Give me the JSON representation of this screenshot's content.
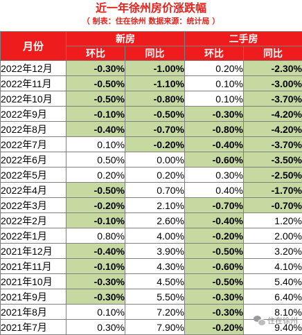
{
  "header": {
    "title": "近一年徐州房价涨跌幅",
    "subtitle": "（ 制表：住在徐州   数据来源：统计局 ）"
  },
  "table": {
    "col_month": "月份",
    "group_new": "新房",
    "group_second": "二手房",
    "sub_mom": "环比",
    "sub_yoy": "同比",
    "rows": [
      {
        "month": "2022年12月",
        "new_mom": "-0.30%",
        "new_yoy": "-1.00%",
        "sec_mom": "0.20%",
        "sec_yoy": "-2.30%"
      },
      {
        "month": "2022年11月",
        "new_mom": "-0.50%",
        "new_yoy": "-1.10%",
        "sec_mom": "0.10%",
        "sec_yoy": "-3.00%"
      },
      {
        "month": "2022年10月",
        "new_mom": "-0.50%",
        "new_yoy": "-0.80%",
        "sec_mom": "0.10%",
        "sec_yoy": "-3.70%"
      },
      {
        "month": "2022年9月",
        "new_mom": "-0.10%",
        "new_yoy": "-0.50%",
        "sec_mom": "-0.30%",
        "sec_yoy": "-4.20%"
      },
      {
        "month": "2022年8月",
        "new_mom": "-0.40%",
        "new_yoy": "-0.70%",
        "sec_mom": "-0.80%",
        "sec_yoy": "-4.20%"
      },
      {
        "month": "2022年7月",
        "new_mom": "0.10%",
        "new_yoy": "-0.20%",
        "sec_mom": "-0.40%",
        "sec_yoy": "-3.70%"
      },
      {
        "month": "2022年6月",
        "new_mom": "0.50%",
        "new_yoy": "0.00%",
        "sec_mom": "-0.60%",
        "sec_yoy": "-3.50%"
      },
      {
        "month": "2022年5月",
        "new_mom": "0.20%",
        "new_yoy": "0.20%",
        "sec_mom": "0.30%",
        "sec_yoy": "-2.50%"
      },
      {
        "month": "2022年4月",
        "new_mom": "-0.50%",
        "new_yoy": "0.70%",
        "sec_mom": "0.40%",
        "sec_yoy": "-1.70%"
      },
      {
        "month": "2022年3月",
        "new_mom": "-0.20%",
        "new_yoy": "2.10%",
        "sec_mom": "-0.70%",
        "sec_yoy": "-0.70%"
      },
      {
        "month": "2022年2月",
        "new_mom": "-0.10%",
        "new_yoy": "2.60%",
        "sec_mom": "-0.40%",
        "sec_yoy": "1.20%"
      },
      {
        "month": "2022年1月",
        "new_mom": "0.80%",
        "new_yoy": "4.00%",
        "sec_mom": "-0.20%",
        "sec_yoy": "2.00%"
      },
      {
        "month": "2021年12月",
        "new_mom": "-0.40%",
        "new_yoy": "3.90%",
        "sec_mom": "-0.50%",
        "sec_yoy": "3.20%"
      },
      {
        "month": "2021年11月",
        "new_mom": "-0.10%",
        "new_yoy": "4.30%",
        "sec_mom": "-0.60%",
        "sec_yoy": "4.10%"
      },
      {
        "month": "2021年10月",
        "new_mom": "-0.30%",
        "new_yoy": "4.50%",
        "sec_mom": "-0.50%",
        "sec_yoy": "5.40%"
      },
      {
        "month": "2021年9月",
        "new_mom": "-0.30%",
        "new_yoy": "5.50%",
        "sec_mom": "-0.30%",
        "sec_yoy": "6.40%"
      },
      {
        "month": "2021年8月",
        "new_mom": "0.10%",
        "new_yoy": "7.20%",
        "sec_mom": "-0.30%",
        "sec_yoy": "8.10%"
      },
      {
        "month": "2021年7月",
        "new_mom": "0.30%",
        "new_yoy": "7.90%",
        "sec_mom": "-0.20%",
        "sec_yoy": "9.40%"
      }
    ]
  },
  "watermark": {
    "icon": "wechat-icon",
    "text": "住在徐州"
  },
  "colors": {
    "title": "#e8201a",
    "header_bg": "#ee1c1c",
    "negative_bg": "#c6d9a0",
    "border": "#7f7f7f"
  }
}
